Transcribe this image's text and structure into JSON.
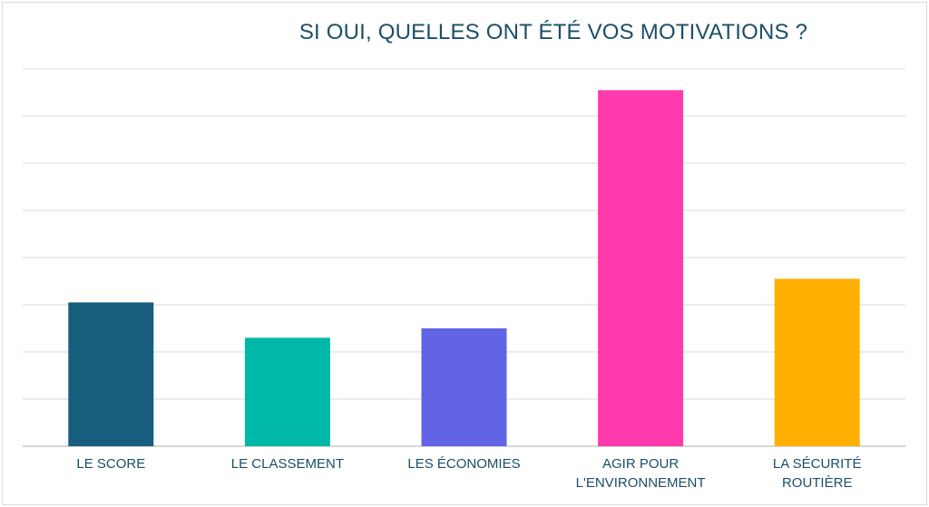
{
  "chart_data": {
    "type": "bar",
    "title": "SI OUI, QUELLES ONT ÉTÉ VOS MOTIVATIONS ?",
    "categories": [
      [
        "LE SCORE"
      ],
      [
        "LE CLASSEMENT"
      ],
      [
        "LES ÉCONOMIES"
      ],
      [
        "AGIR POUR",
        "L'ENVIRONNEMENT"
      ],
      [
        "LA SÉCURITÉ",
        "ROUTIÈRE"
      ]
    ],
    "values": [
      3.05,
      2.3,
      2.5,
      7.55,
      3.55
    ],
    "colors": [
      "#175e7e",
      "#00b8a8",
      "#6164e4",
      "#ff3aac",
      "#ffb000"
    ],
    "ylim": [
      0,
      8
    ],
    "gridlines": true,
    "legend": false
  }
}
